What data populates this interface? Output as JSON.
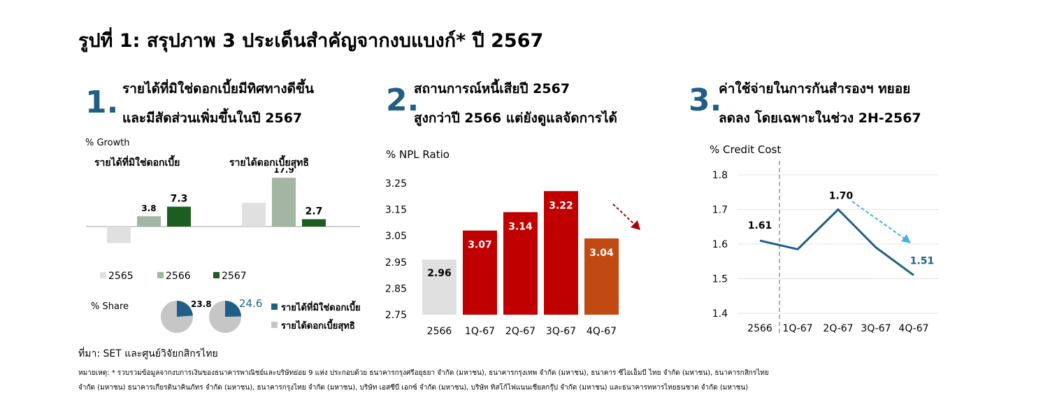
{
  "title": "รูปที่ 1: สรุปภาพ 3 ประเด็นสำคัญจากงบแบงก์* ปี 2567",
  "panel1": {
    "number": "1.",
    "heading_line1": "รายได้ที่มิใช่ดอกเบี้ยมีทิศทางดีขึ้น",
    "heading_line2": "และมีสัดส่วนเพิ่มขึ้นในปี 2567",
    "growth_label": "% Growth",
    "group1_label": "รายได้ที่มิใช่ดอกเบี้ย",
    "group2_label": "รายได้ดอกเบี้ยสุทธิ",
    "legend": [
      "2565",
      "2566",
      "2567"
    ],
    "share_label": "% Share",
    "share_legend": [
      "รายได้ที่มิใช่ดอกเบี้ย",
      "รายได้ดอกเบี้ยสุทธิ"
    ]
  },
  "panel2": {
    "number": "2.",
    "heading_line1": "สถานการณ์หนี้เสียปี 2567",
    "heading_line2": "สูงกว่าปี 2566 แต่ยังดูแลจัดการได้"
  },
  "panel3": {
    "number": "3.",
    "heading_line1": "ค่าใช้จ่ายในการกันสำรองฯ ทยอย",
    "heading_line2": "ลดลง โดยเฉพาะในช่วง 2H-2567"
  },
  "source": "ที่มา: SET และศูนย์วิจัยกสิกรไทย",
  "note_line1": "หมายเหตุ: * รวบรวมข้อมูลจากงบการเงินของธนาคารพาณิชย์และบริษัทย่อย 9 แห่ง ประกอบด้วย ธนาคารกรุงศรีอยุธยา จำกัด (มหาชน), ธนาคารกรุงเทพ จำกัด (มหาชน), ธนาคาร ซีไอเอ็มบี ไทย จำกัด (มหาชน), ธนาคารกสิกรไทย",
  "note_line2": "จำกัด (มหาชน) ธนาคารเกียรตินาคินภัทร จำกัด (มหาชน), ธนาคารกรุงไทย จำกัด (มหาชน), บริษัท เอสซีบี เอกซ์ จำกัด (มหาชน), บริษัท ทิสโก้ไฟแนนเชียลกรุ๊ป จำกัด (มหาชน) และธนาคารทหารไทยธนชาต จำกัด (มหาชน)",
  "colors": {
    "c2565": "#e0e0e0",
    "c2566": "#a3b5a3",
    "c2567": "#1b5e20",
    "npl_base": "#e0e0e0",
    "npl_red": "#c00000",
    "npl_orange": "#c04a12",
    "line": "#1f5f86",
    "accent": "#1f5f86",
    "dash": "#45b0e0"
  },
  "chart_data": [
    {
      "type": "bar",
      "ylabel": "% Growth",
      "categories": [
        "รายได้ที่มิใช่ดอกเบี้ย",
        "รายได้ดอกเบี้ยสุทธิ"
      ],
      "series": [
        {
          "name": "2565",
          "values": [
            -6.0,
            8.7
          ]
        },
        {
          "name": "2566",
          "values": [
            3.8,
            17.9
          ]
        },
        {
          "name": "2567",
          "values": [
            7.3,
            2.7
          ]
        }
      ],
      "data_labels": [
        {
          "series": "2566",
          "category": 0,
          "text": "3.8"
        },
        {
          "series": "2567",
          "category": 0,
          "text": "7.3"
        },
        {
          "series": "2566",
          "category": 1,
          "text": "17.9"
        },
        {
          "series": "2567",
          "category": 1,
          "text": "2.7"
        }
      ],
      "legend": "bottom"
    },
    {
      "type": "pie",
      "ylabel": "% Share",
      "pies": [
        {
          "slices": [
            {
              "name": "รายได้ที่มิใช่ดอกเบี้ย",
              "value": 23.8
            },
            {
              "name": "รายได้ดอกเบี้ยสุทธิ",
              "value": 76.2
            }
          ],
          "label": "23.8"
        },
        {
          "slices": [
            {
              "name": "รายได้ที่มิใช่ดอกเบี้ย",
              "value": 24.6
            },
            {
              "name": "รายได้ดอกเบี้ยสุทธิ",
              "value": 75.4
            }
          ],
          "label": "24.6"
        }
      ],
      "legend": "right"
    },
    {
      "type": "bar",
      "ylabel": "% NPL Ratio",
      "categories": [
        "2566",
        "1Q-67",
        "2Q-67",
        "3Q-67",
        "4Q-67"
      ],
      "values": [
        2.96,
        3.07,
        3.14,
        3.22,
        3.04
      ],
      "labels": [
        "2.96",
        "3.07",
        "3.14",
        "3.22",
        "3.04"
      ],
      "ylim": [
        2.75,
        3.25
      ],
      "yticks": [
        "2.75",
        "2.85",
        "2.95",
        "3.05",
        "3.15",
        "3.25"
      ],
      "grid": false
    },
    {
      "type": "line",
      "ylabel": "% Credit Cost",
      "categories": [
        "2566",
        "1Q-67",
        "2Q-67",
        "3Q-67",
        "4Q-67"
      ],
      "values": [
        1.61,
        1.585,
        1.7,
        1.59,
        1.51
      ],
      "labels": {
        "0": "1.61",
        "2": "1.70",
        "4": "1.51"
      },
      "ylim": [
        1.4,
        1.8
      ],
      "yticks": [
        "1.4",
        "1.5",
        "1.6",
        "1.7",
        "1.8"
      ],
      "grid": true
    }
  ]
}
